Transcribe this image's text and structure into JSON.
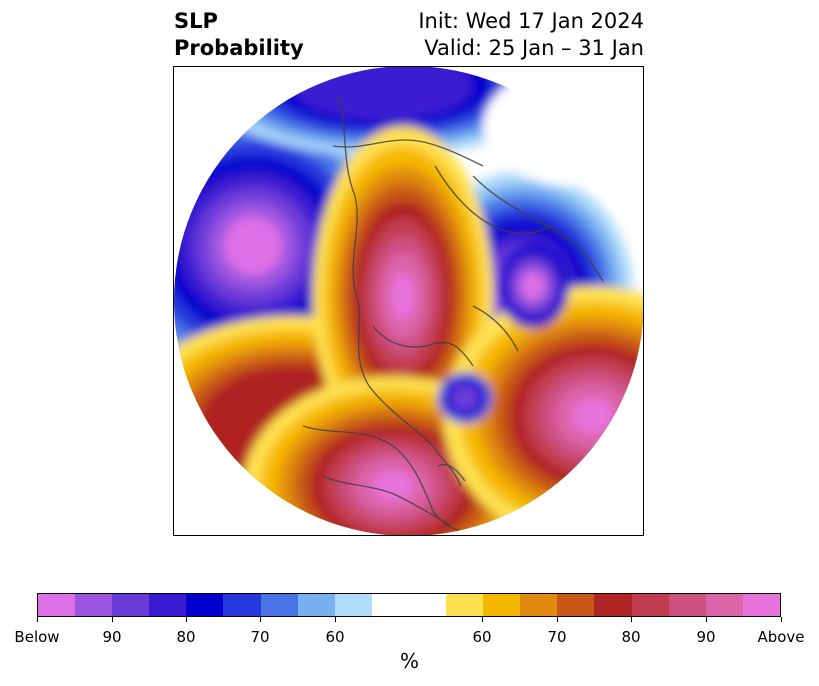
{
  "header": {
    "title_line1": "SLP",
    "title_line2": "Probability",
    "init_text": "Init: Wed 17 Jan 2024",
    "valid_text": "Valid: 25 Jan – 31 Jan"
  },
  "colorbar": {
    "unit": "%",
    "colors": [
      "#dd70e6",
      "#9b55e0",
      "#6a3ad8",
      "#3a1ad0",
      "#0000cc",
      "#2638dc",
      "#4a74e6",
      "#78b0f0",
      "#b0dcfa",
      "#ffffff",
      "#ffe150",
      "#f5b800",
      "#e08a10",
      "#c85818",
      "#b02424",
      "#c23c50",
      "#cc5080",
      "#dc64a8",
      "#e873dc"
    ],
    "tick_labels": [
      "Below",
      "90",
      "80",
      "70",
      "60",
      "60",
      "70",
      "80",
      "90",
      "Above"
    ]
  },
  "map": {
    "projection": "north-polar-stereographic",
    "palette": {
      "below_strong": "#dd70e6",
      "below_90": "#9b55e0",
      "below_85": "#6a3ad8",
      "below_80": "#3a1ad0",
      "below_75": "#0000cc",
      "below_70": "#2638dc",
      "below_65": "#4a74e6",
      "below_60": "#78b0f0",
      "below_55": "#b0dcfa",
      "neutral": "#ffffff",
      "above_55": "#ffe150",
      "above_60": "#f5b800",
      "above_65": "#e08a10",
      "above_70": "#c85818",
      "above_75": "#b02424",
      "above_80": "#c23c50",
      "above_85": "#cc5080",
      "above_90": "#dc64a8",
      "above_strong": "#e873dc",
      "coastline": "#404040"
    }
  }
}
